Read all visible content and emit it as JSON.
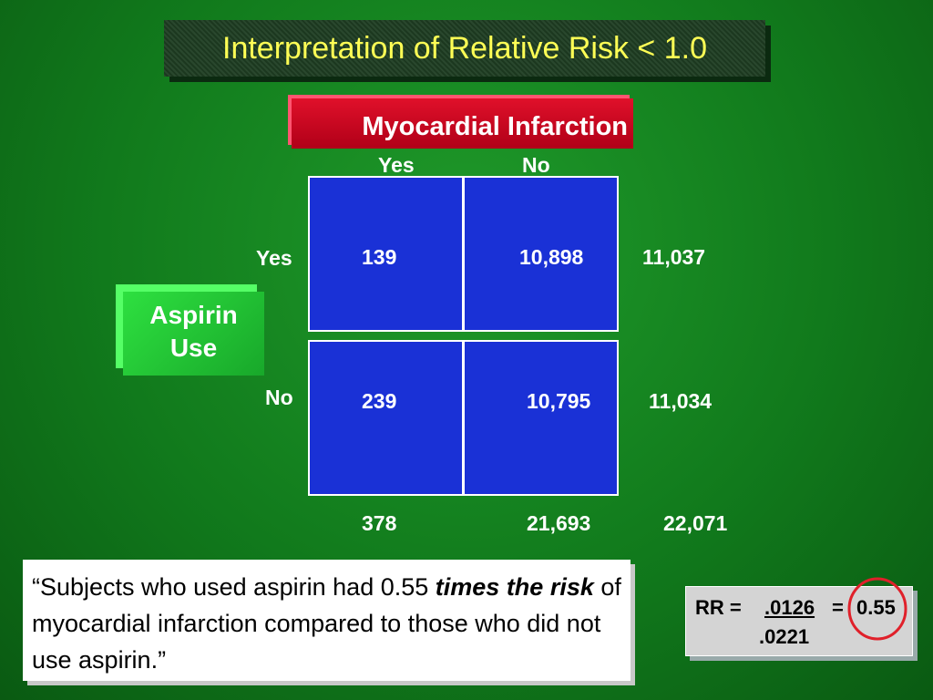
{
  "title": "Interpretation of Relative Risk < 1.0",
  "column_header": "Myocardial Infarction",
  "column_labels": [
    "Yes",
    "No"
  ],
  "row_header": [
    "Aspirin",
    "Use"
  ],
  "row_labels": [
    "Yes",
    "No"
  ],
  "table": {
    "rows": [
      [
        "139",
        "10,898",
        "11,037"
      ],
      [
        "239",
        "10,795",
        "11,034"
      ]
    ],
    "totals": [
      "378",
      "21,693",
      "22,071"
    ]
  },
  "quote": {
    "before": "“Subjects who used aspirin had 0.55 ",
    "emphasis": "times the risk",
    "after": " of myocardial infarction compared to those who did not use aspirin.”"
  },
  "formula": {
    "label": "RR =",
    "numerator": ".0126",
    "equals": "=",
    "result": "0.55",
    "denominator": ".0221"
  }
}
